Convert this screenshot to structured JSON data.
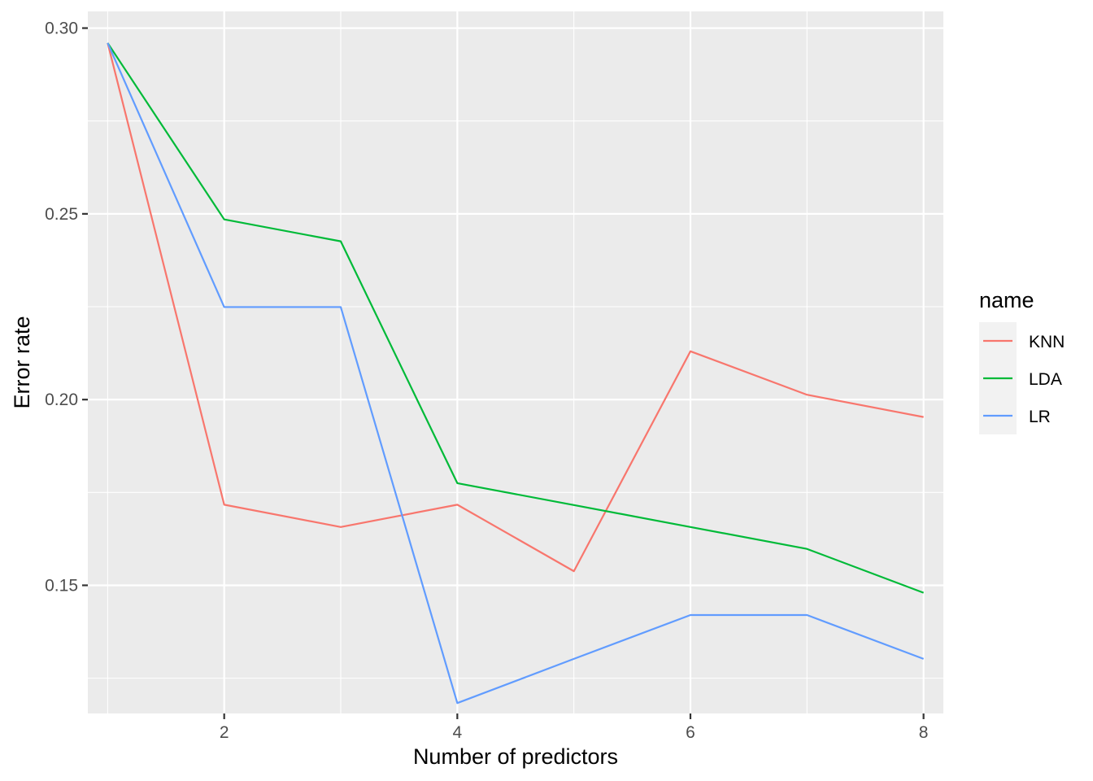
{
  "chart_data": {
    "type": "line",
    "title": "",
    "xlabel": "Number of predictors",
    "ylabel": "Error rate",
    "x": [
      1,
      2,
      3,
      4,
      5,
      6,
      7,
      8
    ],
    "xlim": [
      0.83,
      8.17
    ],
    "ylim": [
      0.1155,
      0.3045
    ],
    "xticks": [
      2,
      4,
      6,
      8
    ],
    "xtick_labels": [
      "2",
      "4",
      "6",
      "8"
    ],
    "yticks": [
      0.15,
      0.2,
      0.25,
      0.3
    ],
    "ytick_labels": [
      "0.15",
      "0.20",
      "0.25",
      "0.30"
    ],
    "grid": true,
    "legend": {
      "title": "name",
      "placement": "right"
    },
    "series": [
      {
        "name": "KNN",
        "color": "#F8766D",
        "values": [
          0.296,
          0.1717,
          0.1657,
          0.1717,
          0.1538,
          0.213,
          0.2013,
          0.1953
        ]
      },
      {
        "name": "LDA",
        "color": "#00BA38",
        "values": [
          0.296,
          0.2485,
          0.2426,
          0.1775,
          0.1716,
          0.1657,
          0.1598,
          0.148
        ]
      },
      {
        "name": "LR",
        "color": "#619CFF",
        "values": [
          0.296,
          0.2249,
          0.2249,
          0.1183,
          0.1302,
          0.142,
          0.142,
          0.1302
        ]
      }
    ]
  }
}
